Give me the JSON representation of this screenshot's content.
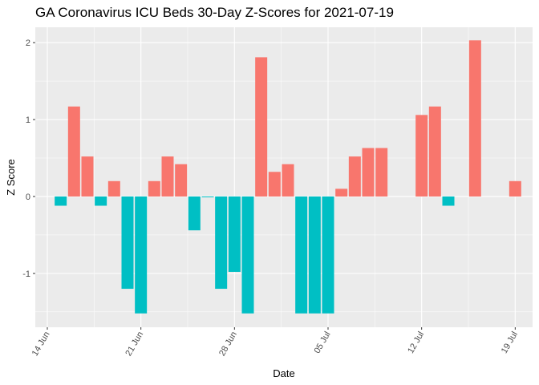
{
  "chart_data": {
    "type": "bar",
    "title": "GA Coronavirus ICU Beds 30-Day Z-Scores for 2021-07-19",
    "xlabel": "Date",
    "ylabel": "Z Score",
    "ylim": [
      -1.7,
      2.2
    ],
    "y_ticks": [
      -1,
      0,
      1,
      2
    ],
    "x_ticks": [
      {
        "label": "14 Jun",
        "day": 0
      },
      {
        "label": "21 Jun",
        "day": 7
      },
      {
        "label": "28 Jun",
        "day": 14
      },
      {
        "label": "05 Jul",
        "day": 21
      },
      {
        "label": "12 Jul",
        "day": 28
      },
      {
        "label": "19 Jul",
        "day": 35
      }
    ],
    "colors": {
      "positive": "#F8766D",
      "negative": "#00BFC4",
      "panel": "#EBEBEB",
      "grid": "#FFFFFF"
    },
    "series": [
      {
        "name": "Z Score",
        "days": [
          1,
          2,
          3,
          4,
          5,
          6,
          7,
          8,
          9,
          10,
          11,
          12,
          13,
          14,
          15,
          16,
          17,
          18,
          19,
          20,
          21,
          22,
          23,
          24,
          25,
          26,
          27,
          28,
          29,
          30,
          31,
          32,
          33,
          34,
          35
        ],
        "dates": [
          "15 Jun",
          "16 Jun",
          "17 Jun",
          "18 Jun",
          "19 Jun",
          "20 Jun",
          "21 Jun",
          "22 Jun",
          "23 Jun",
          "24 Jun",
          "25 Jun",
          "26 Jun",
          "27 Jun",
          "28 Jun",
          "29 Jun",
          "30 Jun",
          "01 Jul",
          "02 Jul",
          "03 Jul",
          "04 Jul",
          "05 Jul",
          "06 Jul",
          "07 Jul",
          "08 Jul",
          "09 Jul",
          "10 Jul",
          "11 Jul",
          "12 Jul",
          "13 Jul",
          "14 Jul",
          "15 Jul",
          "16 Jul",
          "17 Jul",
          "18 Jul",
          "19 Jul"
        ],
        "values": [
          -0.12,
          1.17,
          0.52,
          -0.12,
          0.2,
          -1.2,
          -1.52,
          0.2,
          0.52,
          0.42,
          -0.44,
          -0.01,
          -1.2,
          -0.98,
          -1.52,
          1.81,
          0.32,
          0.42,
          -1.52,
          -1.52,
          -1.52,
          0.1,
          0.52,
          0.63,
          0.63,
          0.0,
          0.0,
          1.06,
          1.17,
          -0.12,
          0.0,
          2.03,
          0.0,
          0.0,
          0.2
        ]
      }
    ]
  }
}
